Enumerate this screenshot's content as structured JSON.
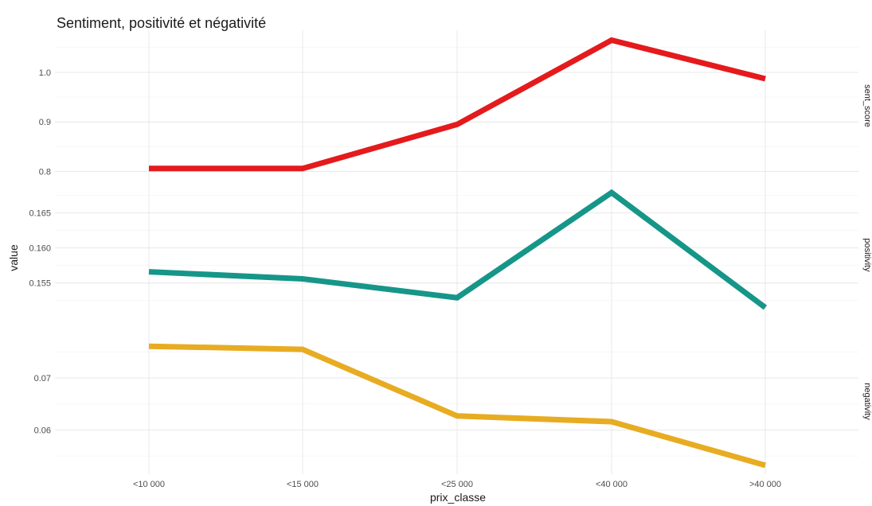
{
  "chart_data": {
    "type": "line",
    "title": "Sentiment, positivité et négativité",
    "xlabel": "prix_classe",
    "ylabel": "value",
    "categories": [
      "<10 000",
      "<15 000",
      "<25 000",
      "<40 000",
      ">40 000"
    ],
    "grid": true,
    "legend": "none",
    "facets": [
      {
        "name": "sent_score",
        "color": "#e41a1c",
        "values": [
          0.806,
          0.806,
          0.895,
          1.065,
          0.987
        ],
        "ylim": [
          0.78,
          1.085
        ],
        "yticks": [
          0.8,
          0.9,
          1.0
        ],
        "ytick_labels": [
          "0.8",
          "0.9",
          "1.0"
        ]
      },
      {
        "name": "positivity",
        "color": "#169688",
        "values": [
          0.1566,
          0.1556,
          0.1529,
          0.1679,
          0.1515
        ],
        "ylim": [
          0.1485,
          0.1695
        ],
        "yticks": [
          0.155,
          0.16,
          0.165
        ],
        "ytick_labels": [
          "0.155",
          "0.160",
          "0.165"
        ]
      },
      {
        "name": "negativity",
        "color": "#e8ac22",
        "values": [
          0.0761,
          0.0755,
          0.0627,
          0.0616,
          0.0532
        ],
        "ylim": [
          0.0515,
          0.0795
        ],
        "yticks": [
          0.06,
          0.07
        ],
        "ytick_labels": [
          "0.06",
          "0.07"
        ]
      }
    ]
  }
}
